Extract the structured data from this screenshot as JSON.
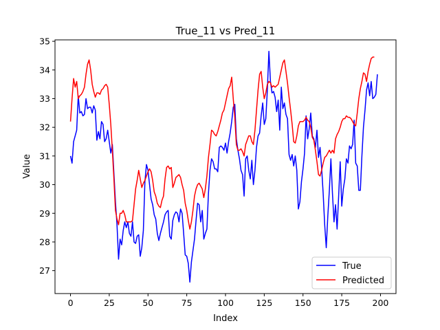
{
  "chart_data": {
    "type": "line",
    "title": "True_11 vs Pred_11",
    "xlabel": "Index",
    "ylabel": "Value",
    "xlim": [
      -10,
      210
    ],
    "ylim": [
      26.2,
      35.05
    ],
    "xticks": [
      0,
      25,
      50,
      75,
      100,
      125,
      150,
      175,
      200
    ],
    "yticks": [
      27,
      28,
      29,
      30,
      31,
      32,
      33,
      34,
      35
    ],
    "grid": false,
    "legend_position": "lower-right",
    "series": [
      {
        "name": "True",
        "color": "#0000ff",
        "values": [
          31.0,
          30.75,
          31.5,
          31.7,
          31.9,
          33.1,
          32.5,
          32.55,
          32.4,
          32.45,
          33.0,
          32.65,
          32.7,
          32.7,
          32.5,
          32.75,
          32.6,
          31.55,
          31.85,
          31.6,
          32.2,
          32.1,
          31.5,
          31.6,
          31.9,
          31.5,
          31.1,
          31.4,
          30.4,
          29.4,
          28.6,
          27.4,
          28.1,
          27.9,
          28.4,
          28.7,
          28.5,
          28.7,
          28.3,
          28.2,
          28.7,
          28.0,
          27.95,
          28.2,
          28.25,
          27.5,
          27.8,
          28.4,
          30.1,
          30.7,
          30.5,
          30.0,
          29.5,
          29.3,
          28.95,
          28.8,
          28.3,
          28.05,
          28.3,
          28.5,
          28.7,
          28.95,
          29.05,
          29.1,
          28.2,
          28.1,
          28.75,
          28.95,
          29.05,
          29.0,
          28.7,
          29.15,
          29.0,
          28.3,
          27.55,
          27.5,
          27.25,
          26.6,
          27.3,
          27.7,
          28.1,
          28.75,
          29.35,
          29.3,
          28.7,
          29.1,
          28.1,
          28.3,
          28.45,
          29.7,
          30.5,
          30.9,
          30.8,
          30.55,
          30.55,
          30.45,
          31.3,
          31.35,
          31.3,
          31.2,
          31.45,
          31.1,
          31.5,
          31.8,
          32.2,
          32.7,
          32.8,
          31.6,
          31.2,
          30.9,
          30.5,
          30.35,
          29.6,
          30.9,
          31.0,
          30.5,
          30.2,
          30.85,
          30.0,
          30.5,
          31.3,
          31.7,
          31.8,
          32.4,
          32.85,
          32.1,
          32.3,
          33.3,
          34.65,
          33.6,
          33.2,
          33.25,
          33.05,
          32.55,
          32.95,
          31.9,
          33.4,
          32.65,
          32.85,
          32.45,
          32.3,
          31.05,
          30.85,
          31.05,
          30.65,
          31.0,
          30.5,
          29.15,
          29.4,
          30.1,
          30.55,
          31.1,
          32.4,
          31.6,
          31.95,
          32.5,
          31.7,
          31.6,
          31.3,
          31.9,
          30.95,
          31.3,
          30.6,
          29.7,
          28.6,
          27.8,
          28.9,
          29.8,
          30.9,
          29.7,
          28.7,
          29.3,
          28.45,
          29.6,
          30.8,
          29.25,
          29.85,
          30.2,
          30.9,
          30.75,
          31.35,
          31.25,
          31.4,
          32.25,
          30.75,
          30.65,
          29.8,
          29.8,
          31.0,
          32.0,
          32.6,
          33.3,
          33.55,
          33.1,
          33.6,
          33.0,
          33.05,
          33.15,
          33.85
        ]
      },
      {
        "name": "Predicted",
        "color": "#ff0000",
        "values": [
          32.2,
          33.0,
          33.7,
          33.4,
          33.6,
          33.0,
          33.1,
          33.15,
          33.25,
          33.4,
          33.85,
          34.2,
          34.35,
          34.0,
          33.5,
          33.25,
          33.05,
          33.2,
          33.2,
          33.15,
          33.3,
          33.35,
          33.45,
          33.5,
          33.4,
          32.8,
          32.1,
          31.2,
          30.2,
          29.1,
          28.8,
          28.6,
          29.0,
          29.0,
          29.1,
          28.95,
          28.7,
          28.7,
          28.7,
          28.7,
          28.75,
          29.3,
          29.85,
          30.15,
          30.5,
          30.2,
          29.9,
          30.05,
          30.15,
          30.3,
          30.45,
          30.55,
          30.45,
          30.15,
          29.75,
          29.6,
          29.35,
          29.25,
          29.2,
          29.45,
          29.6,
          30.2,
          30.6,
          30.65,
          30.55,
          30.6,
          29.9,
          30.05,
          30.25,
          30.3,
          30.35,
          30.25,
          30.0,
          29.8,
          29.35,
          29.1,
          28.75,
          28.45,
          28.7,
          29.1,
          29.6,
          29.85,
          30.0,
          30.05,
          29.95,
          29.85,
          29.55,
          29.85,
          30.3,
          30.95,
          31.4,
          31.9,
          31.85,
          31.75,
          31.7,
          31.85,
          32.05,
          32.25,
          32.5,
          32.6,
          32.85,
          33.1,
          33.35,
          33.45,
          33.75,
          33.0,
          32.35,
          31.4,
          31.2,
          31.2,
          31.25,
          31.15,
          31.0,
          31.4,
          31.55,
          31.7,
          31.7,
          31.5,
          31.4,
          31.9,
          32.6,
          33.3,
          33.85,
          33.95,
          33.4,
          33.0,
          33.2,
          33.5,
          33.6,
          33.55,
          33.4,
          33.45,
          33.4,
          33.45,
          33.5,
          33.75,
          34.0,
          34.25,
          34.35,
          33.95,
          33.55,
          33.05,
          32.6,
          32.1,
          31.5,
          31.45,
          31.7,
          32.05,
          32.2,
          32.2,
          32.2,
          32.25,
          32.35,
          32.25,
          32.2,
          32.0,
          31.65,
          31.55,
          31.2,
          30.8,
          30.35,
          30.3,
          30.5,
          30.75,
          30.95,
          31.0,
          31.1,
          31.2,
          31.1,
          31.2,
          31.1,
          31.6,
          31.75,
          31.85,
          32.0,
          32.2,
          32.3,
          32.3,
          32.4,
          32.35,
          32.35,
          32.3,
          32.2,
          32.1,
          32.05,
          32.5,
          33.0,
          33.35,
          33.6,
          33.9,
          33.85,
          33.6,
          33.95,
          34.2,
          34.4,
          34.45,
          34.45
        ]
      }
    ]
  }
}
